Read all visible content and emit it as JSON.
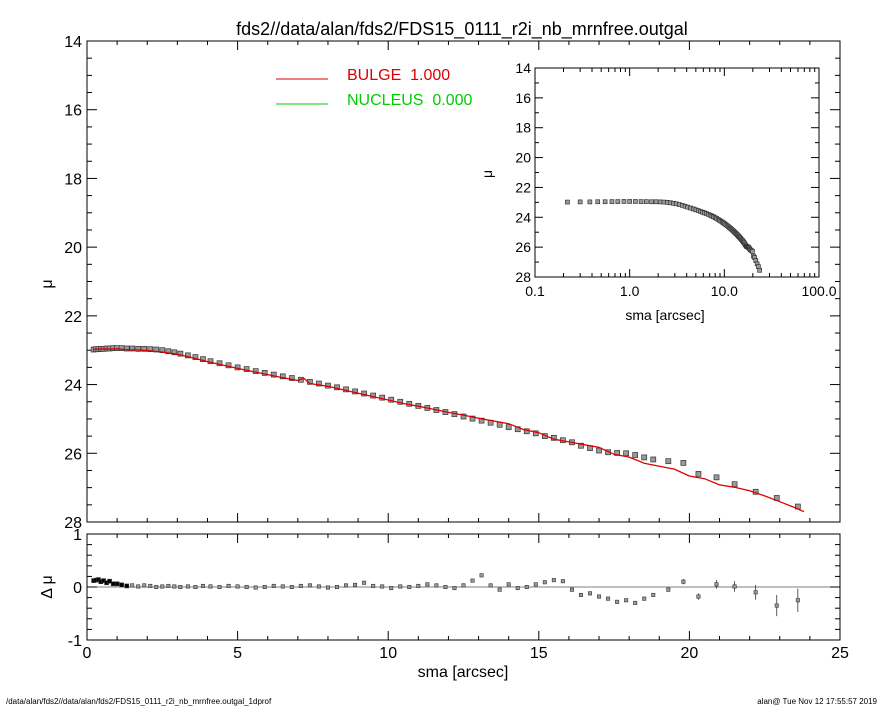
{
  "title": "fds2//data/alan/fds2/FDS15_0111_r2i_nb_mrnfree.outgal",
  "footer_left": "/data/alan/fds2//data/alan/fds2/FDS15_0111_r2i_nb_mrnfree.outgal_1dprof",
  "footer_right": "alan@  Tue Nov 12 17:55:57 2019",
  "colors": {
    "model": "#dd0000",
    "bulge": "#dd0000",
    "nucleus": "#00cc00",
    "data_fill": "#9a9a9a",
    "axes": "#000000"
  },
  "chart_data": [
    {
      "panel": "main",
      "type": "scatter",
      "title": "fds2//data/alan/fds2/FDS15_0111_r2i_nb_mrnfree.outgal",
      "xlabel": "",
      "ylabel": "μ",
      "xlim": [
        0,
        25
      ],
      "ylim": [
        28,
        14
      ],
      "y_inverted": true,
      "xticks": [
        "0",
        "5",
        "10",
        "15",
        "20",
        "25"
      ],
      "yticks": [
        "14",
        "16",
        "18",
        "20",
        "22",
        "24",
        "26",
        "28"
      ],
      "legend": [
        {
          "label": "BULGE  1.000",
          "color": "#dd0000"
        },
        {
          "label": "NUCLEUS  0.000",
          "color": "#00cc00"
        }
      ],
      "legend_position": "top-center",
      "series": [
        {
          "kind": "points",
          "x": [
            0.22,
            0.3,
            0.38,
            0.46,
            0.55,
            0.65,
            0.75,
            0.87,
            1.0,
            1.15,
            1.32,
            1.5,
            1.7,
            1.9,
            2.1,
            2.3,
            2.5,
            2.7,
            2.9,
            3.1,
            3.35,
            3.6,
            3.85,
            4.1,
            4.4,
            4.7,
            5.0,
            5.3,
            5.6,
            5.9,
            6.2,
            6.5,
            6.8,
            7.1,
            7.4,
            7.7,
            8.0,
            8.3,
            8.6,
            8.9,
            9.2,
            9.5,
            9.8,
            10.1,
            10.4,
            10.7,
            11.0,
            11.3,
            11.6,
            11.9,
            12.2,
            12.5,
            12.8,
            13.1,
            13.4,
            13.7,
            14.0,
            14.3,
            14.6,
            14.9,
            15.2,
            15.5,
            15.8,
            16.1,
            16.4,
            16.7,
            17.0,
            17.3,
            17.6,
            17.9,
            18.2,
            18.5,
            18.8,
            19.3,
            19.8,
            20.3,
            20.9,
            21.5,
            22.2,
            22.9,
            23.6
          ],
          "y": [
            22.98,
            22.97,
            22.97,
            22.96,
            22.96,
            22.95,
            22.95,
            22.94,
            22.94,
            22.94,
            22.95,
            22.95,
            22.96,
            22.96,
            22.97,
            22.98,
            23.0,
            23.03,
            23.06,
            23.1,
            23.15,
            23.2,
            23.26,
            23.32,
            23.38,
            23.44,
            23.5,
            23.55,
            23.61,
            23.66,
            23.71,
            23.76,
            23.81,
            23.86,
            23.92,
            23.97,
            24.03,
            24.08,
            24.14,
            24.2,
            24.26,
            24.32,
            24.38,
            24.44,
            24.5,
            24.56,
            24.62,
            24.68,
            24.74,
            24.8,
            24.86,
            24.93,
            24.99,
            25.05,
            25.11,
            25.17,
            25.24,
            25.3,
            25.36,
            25.42,
            25.5,
            25.55,
            25.62,
            25.68,
            25.78,
            25.85,
            25.92,
            25.97,
            25.99,
            26.0,
            26.05,
            26.12,
            26.18,
            26.23,
            26.28,
            26.6,
            26.7,
            26.9,
            27.12,
            27.3,
            27.55
          ]
        },
        {
          "kind": "line",
          "name": "BULGE",
          "x": [
            0.22,
            0.4,
            0.6,
            0.8,
            1.0,
            1.2,
            1.5,
            1.8,
            2.1,
            2.4,
            2.7,
            3.0,
            3.5,
            4.0,
            4.5,
            5.0,
            5.5,
            6.0,
            6.5,
            7.0,
            7.2,
            7.4,
            8.0,
            8.5,
            9.0,
            9.5,
            10.0,
            10.5,
            11.0,
            11.5,
            12.0,
            12.5,
            13.0,
            13.5,
            14.0,
            14.5,
            15.0,
            15.5,
            16.0,
            16.5,
            17.0,
            17.5,
            18.0,
            18.5,
            19.0,
            19.5,
            20.0,
            20.5,
            21.0,
            21.5,
            22.0,
            22.5,
            23.0,
            23.5,
            23.8
          ],
          "y": [
            22.97,
            22.97,
            22.96,
            22.97,
            22.96,
            22.98,
            22.99,
            23.0,
            23.02,
            23.04,
            23.08,
            23.12,
            23.22,
            23.33,
            23.43,
            23.53,
            23.62,
            23.71,
            23.8,
            23.88,
            23.82,
            23.97,
            24.05,
            24.15,
            24.25,
            24.35,
            24.45,
            24.55,
            24.63,
            24.72,
            24.81,
            24.89,
            24.98,
            25.06,
            25.14,
            25.31,
            25.4,
            25.59,
            25.67,
            25.75,
            25.83,
            26.03,
            26.11,
            26.29,
            26.38,
            26.46,
            26.66,
            26.74,
            26.92,
            26.99,
            27.09,
            27.24,
            27.41,
            27.58,
            27.7
          ]
        }
      ]
    },
    {
      "panel": "residual",
      "type": "scatter",
      "xlabel": "sma [arcsec]",
      "ylabel": "Δ μ",
      "xlim": [
        0,
        25
      ],
      "ylim": [
        -1,
        1
      ],
      "xticks": [
        "0",
        "5",
        "10",
        "15",
        "20",
        "25"
      ],
      "yticks": [
        "1",
        "0",
        "-1"
      ],
      "zero_line": true,
      "series": [
        {
          "kind": "points",
          "x": [
            0.22,
            0.3,
            0.38,
            0.46,
            0.55,
            0.65,
            0.75,
            0.87,
            1.0,
            1.15,
            1.32,
            1.5,
            1.7,
            1.9,
            2.1,
            2.3,
            2.5,
            2.7,
            2.9,
            3.1,
            3.35,
            3.6,
            3.85,
            4.1,
            4.4,
            4.7,
            5.0,
            5.3,
            5.6,
            5.9,
            6.2,
            6.5,
            6.8,
            7.1,
            7.4,
            7.7,
            8.0,
            8.3,
            8.6,
            8.9,
            9.2,
            9.5,
            9.8,
            10.1,
            10.4,
            10.7,
            11.0,
            11.3,
            11.6,
            11.9,
            12.2,
            12.5,
            12.8,
            13.1,
            13.4,
            13.7,
            14.0,
            14.3,
            14.6,
            14.9,
            15.2,
            15.5,
            15.8,
            16.1,
            16.4,
            16.7,
            17.0,
            17.3,
            17.6,
            17.9,
            18.2,
            18.5,
            18.8,
            19.3,
            19.8,
            20.3,
            20.9,
            21.5,
            22.2,
            22.9,
            23.6
          ],
          "y": [
            0.12,
            0.13,
            0.14,
            0.1,
            0.12,
            0.08,
            0.11,
            0.06,
            0.06,
            0.04,
            0.02,
            0.03,
            0.01,
            0.03,
            0.02,
            0.0,
            0.01,
            0.02,
            0.01,
            0.0,
            0.01,
            0.0,
            0.02,
            0.01,
            0.0,
            0.02,
            0.01,
            0.0,
            -0.01,
            0.0,
            0.02,
            0.01,
            0.0,
            0.02,
            0.03,
            0.01,
            -0.01,
            0.0,
            0.03,
            0.04,
            0.08,
            0.02,
            0.01,
            -0.02,
            0.01,
            0.0,
            0.02,
            0.05,
            0.03,
            0.0,
            -0.02,
            0.03,
            0.12,
            0.22,
            0.03,
            -0.05,
            0.05,
            -0.02,
            0.0,
            0.05,
            0.09,
            0.13,
            0.11,
            -0.05,
            -0.15,
            -0.12,
            -0.18,
            -0.22,
            -0.28,
            -0.25,
            -0.3,
            -0.22,
            -0.15,
            -0.05,
            0.1,
            -0.18,
            0.05,
            0.01,
            -0.1,
            -0.35,
            -0.25
          ],
          "err": [
            0,
            0,
            0,
            0,
            0,
            0,
            0,
            0,
            0,
            0,
            0,
            0,
            0,
            0,
            0,
            0,
            0,
            0,
            0,
            0,
            0,
            0,
            0,
            0,
            0,
            0,
            0,
            0,
            0,
            0,
            0,
            0,
            0,
            0,
            0,
            0,
            0,
            0,
            0,
            0,
            0,
            0,
            0,
            0,
            0,
            0,
            0,
            0,
            0,
            0,
            0,
            0,
            0,
            0,
            0,
            0,
            0,
            0,
            0,
            0,
            0,
            0,
            0,
            0,
            0,
            0,
            0,
            0,
            0,
            0,
            0,
            0,
            0.03,
            0.04,
            0.05,
            0.06,
            0.08,
            0.1,
            0.14,
            0.2,
            0.22
          ]
        }
      ]
    },
    {
      "panel": "inset",
      "type": "scatter",
      "xlabel": "sma [arcsec]",
      "ylabel": "μ",
      "xscale": "log",
      "xlim": [
        0.1,
        100
      ],
      "ylim": [
        28,
        14
      ],
      "y_inverted": true,
      "xticks": [
        "0.1",
        "1.0",
        "10.0",
        "100.0"
      ],
      "yticks": [
        "14",
        "16",
        "18",
        "20",
        "22",
        "24",
        "26",
        "28"
      ],
      "series": [
        {
          "kind": "points",
          "source": "same radial profile as main panel"
        }
      ]
    }
  ]
}
